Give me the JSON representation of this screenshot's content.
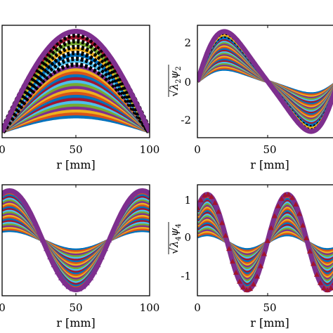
{
  "chart_data": [
    {
      "type": "line",
      "panel": "top-left",
      "ylabel": "",
      "xlabel": "r [mm]",
      "x_range": [
        0,
        100
      ],
      "xticks": [
        "0",
        "50",
        "100"
      ],
      "yticks": [],
      "grid": false,
      "curve_shape": "half-sine arch, max at r = 50 mm",
      "series_count": 30,
      "y_relative_amplitude_range": [
        0.15,
        1.0
      ]
    },
    {
      "type": "line",
      "panel": "top-right",
      "ylabel": "√λ2ψ2",
      "ylabel_parts": {
        "sqrt": "√",
        "lambda": "λ",
        "lambda_sub": "2",
        "psi": "ψ",
        "psi_sub": "2"
      },
      "xlabel": "r [mm]",
      "x_range": [
        0,
        100
      ],
      "y_range": [
        -2.7,
        2.7
      ],
      "xticks": [
        "0",
        "50"
      ],
      "yticks": [
        "2",
        "0",
        "-2"
      ],
      "grid": false,
      "curve_shape": "full sine period, peak 2.4 near r = 20, zero at r = 50, trough -2.4 near r = 80",
      "series_count": 26,
      "peak_amplitude_range": [
        0.6,
        2.4
      ]
    },
    {
      "type": "line",
      "panel": "bottom-left",
      "ylabel": "",
      "xlabel": "r [mm]",
      "x_range": [
        0,
        100
      ],
      "xticks": [
        "0",
        "50",
        "100"
      ],
      "yticks": [],
      "grid": false,
      "curve_shape": "cosine, maxima near r = 5 and r = 95, minimum at r = 50",
      "series_count": 24,
      "peak_amplitude_range": [
        0.2,
        1.0
      ]
    },
    {
      "type": "line",
      "panel": "bottom-right",
      "ylabel": "√λ4ψ4",
      "ylabel_parts": {
        "sqrt": "√",
        "lambda": "λ",
        "lambda_sub": "4",
        "psi": "ψ",
        "psi_sub": "4"
      },
      "xlabel": "r [mm]",
      "x_range": [
        0,
        100
      ],
      "y_range": [
        -1.4,
        1.5
      ],
      "xticks": [
        "0",
        "50"
      ],
      "yticks": [
        "1",
        "0",
        "-1"
      ],
      "grid": false,
      "curve_shape": "oscillation with peaks near r = 7 and r = 64, troughs near r = 35 and r = 92",
      "series_count": 24,
      "peak_amplitude_range": [
        0.2,
        1.25
      ]
    }
  ],
  "palette": [
    "#0072BD",
    "#D95319",
    "#EDB120",
    "#7E2F8E",
    "#77AC30",
    "#4DBEEE",
    "#A2142F"
  ],
  "highlight_colors": {
    "outer_curve": "#7E2F8E",
    "dashed_curves": "#000000"
  }
}
